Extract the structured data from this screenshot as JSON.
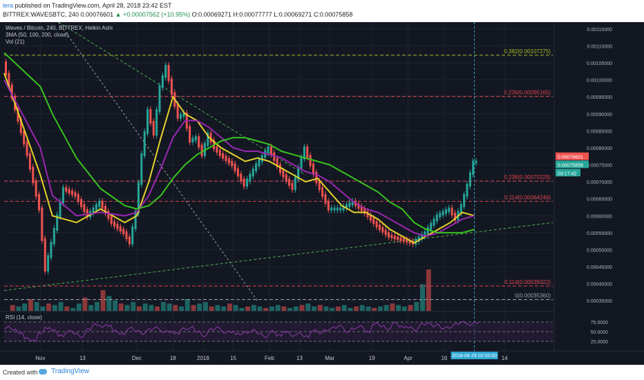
{
  "header": {
    "user": "lera",
    "published": "published on TradingView.com, April 28, 2018 23:42 EST",
    "symbol": "BITTREX:WAVESBTC, 240",
    "last": "0.00076601",
    "change_icon": "triangle-up-icon",
    "change": "+0.00007562 (+10.95%)",
    "ohlc": "O:0.00069271 H:0.00077777 L:0.00069271 C:0.00075858"
  },
  "legend": {
    "line1": "Waves / Bitcoin, 240, BITTREX, Heikin Ashi",
    "line2": "3MA (50, 100, 200, close)",
    "line3": "Vol (21)"
  },
  "rsi_label": "RSI (14, close)",
  "footer": {
    "created": "Created with",
    "brand": "TradingView"
  },
  "colors": {
    "background": "#131722",
    "up": "#26a69a",
    "down": "#ef5350",
    "ma50": "#e6d32b",
    "ma100": "#9b27b0",
    "ma200": "#38c51f",
    "rsi": "#8e3ba8",
    "price_tag": "#ef5350",
    "close_tag": "#26a69a"
  },
  "chart_data": {
    "type": "line",
    "title": "Waves / Bitcoin, 240, BITTREX, Heikin Ashi",
    "ylim": [
      0.00032,
      0.00117
    ],
    "y_ticks": [
      "0.00115000",
      "0.00110000",
      "0.00105000",
      "0.00100000",
      "0.00095000",
      "0.00090000",
      "0.00085000",
      "0.00080000",
      "0.00075000",
      "0.00070000",
      "0.00065000",
      "0.00060000",
      "0.00055000",
      "0.00050000",
      "0.00045000",
      "0.00040000",
      "0.00035000"
    ],
    "x_ticks": [
      "Nov",
      "13",
      "Dec",
      "18",
      "2018",
      "15",
      "Feb",
      "13",
      "Mar",
      "19",
      "Apr",
      "16",
      "2018-04-29 02:00:00",
      "14"
    ],
    "x_tick_index": [
      -4,
      3,
      12,
      18,
      23,
      28,
      34,
      39,
      44,
      51,
      57,
      63,
      68,
      73
    ],
    "x_range": [
      -10,
      81
    ],
    "price": {
      "x": [
        -10,
        -6,
        -4,
        -3,
        -2,
        0,
        2,
        4,
        6,
        8,
        10,
        11,
        12,
        13,
        14,
        15,
        16,
        17,
        18,
        19,
        20,
        21,
        22,
        23,
        24,
        25,
        26,
        28,
        30,
        32,
        34,
        36,
        38,
        40,
        42,
        44,
        46,
        48,
        50,
        52,
        54,
        56,
        58,
        60,
        62,
        64,
        65,
        66,
        67,
        68
      ],
      "y": [
        0.00105,
        0.00078,
        0.00062,
        0.00044,
        0.00052,
        0.00068,
        0.00066,
        0.0006,
        0.00064,
        0.00058,
        0.00055,
        0.00052,
        0.00061,
        0.00078,
        0.00091,
        0.00084,
        0.00098,
        0.00104,
        0.00096,
        0.00089,
        0.0009,
        0.00082,
        0.00083,
        0.00078,
        0.00084,
        0.0008,
        0.00078,
        0.00075,
        0.00069,
        0.00075,
        0.0008,
        0.00073,
        0.00068,
        0.0008,
        0.0007,
        0.00062,
        0.00062,
        0.00064,
        0.00061,
        0.00057,
        0.00054,
        0.00053,
        0.00052,
        0.00055,
        0.0006,
        0.00062,
        0.00059,
        0.00063,
        0.00069,
        0.000758
      ]
    },
    "series": [
      {
        "name": "MA 50",
        "x": [
          -10,
          -4,
          -2,
          2,
          6,
          10,
          12,
          14,
          16,
          18,
          20,
          22,
          24,
          26,
          28,
          30,
          32,
          34,
          36,
          38,
          40,
          42,
          44,
          46,
          48,
          50,
          52,
          54,
          56,
          58,
          60,
          62,
          64,
          66,
          68
        ],
        "y": [
          0.00102,
          0.00072,
          0.0006,
          0.00058,
          0.00062,
          0.00058,
          0.0006,
          0.0007,
          0.00083,
          0.00095,
          0.0009,
          0.00088,
          0.00083,
          0.0008,
          0.00078,
          0.00076,
          0.00077,
          0.00076,
          0.00074,
          0.00072,
          0.0007,
          0.00071,
          0.00067,
          0.00063,
          0.00061,
          0.00061,
          0.00059,
          0.00056,
          0.00054,
          0.00052,
          0.00054,
          0.00056,
          0.00058,
          0.00061,
          0.0006
        ]
      },
      {
        "name": "MA 100",
        "x": [
          -10,
          -4,
          -2,
          2,
          6,
          10,
          12,
          14,
          16,
          18,
          20,
          22,
          24,
          26,
          28,
          30,
          32,
          34,
          36,
          38,
          40,
          42,
          44,
          46,
          48,
          50,
          52,
          54,
          56,
          58,
          60,
          62,
          64,
          66,
          68
        ],
        "y": [
          0.001,
          0.0008,
          0.00066,
          0.0006,
          0.00061,
          0.0006,
          0.00061,
          0.00066,
          0.00074,
          0.00083,
          0.00088,
          0.00088,
          0.00086,
          0.00083,
          0.0008,
          0.00079,
          0.00079,
          0.00078,
          0.00077,
          0.00075,
          0.00073,
          0.00072,
          0.0007,
          0.00067,
          0.00064,
          0.00062,
          0.00061,
          0.00059,
          0.00057,
          0.00055,
          0.00054,
          0.00055,
          0.00057,
          0.00059,
          0.0006
        ]
      },
      {
        "name": "MA 200",
        "x": [
          -10,
          -4,
          -2,
          2,
          6,
          10,
          12,
          14,
          16,
          18,
          20,
          22,
          24,
          26,
          28,
          30,
          32,
          34,
          36,
          38,
          40,
          42,
          44,
          46,
          48,
          50,
          52,
          54,
          56,
          58,
          60,
          62,
          64,
          66,
          68
        ],
        "y": [
          0.00108,
          0.00098,
          0.0009,
          0.00077,
          0.00068,
          0.00063,
          0.00062,
          0.00063,
          0.00066,
          0.00071,
          0.00075,
          0.00078,
          0.0008,
          0.00082,
          0.00083,
          0.00083,
          0.00082,
          0.00081,
          0.00079,
          0.00078,
          0.00077,
          0.00076,
          0.00075,
          0.00073,
          0.00071,
          0.00069,
          0.00067,
          0.00064,
          0.00062,
          0.00058,
          0.00056,
          0.00055,
          0.00055,
          0.00055,
          0.00056
        ]
      }
    ],
    "fibonacci": [
      {
        "label": "0.382(0.00107275)",
        "value": 0.00107275,
        "color": "#aebf2b"
      },
      {
        "label": "0.236(0.00095165)",
        "value": 0.00095165,
        "color": "#e0464d"
      },
      {
        "label": "0.236(0.00070229)",
        "value": 0.00070229,
        "color": "#e0464d"
      },
      {
        "label": "0.114(0.00064249)",
        "value": 0.00064249,
        "color": "#e0464d"
      },
      {
        "label": "0.114(0.00039322)",
        "value": 0.00039322,
        "color": "#e0464d"
      },
      {
        "label": "0(0.00035360)",
        "value": 0.0003536,
        "color": "#9aa0a8"
      }
    ],
    "price_tags": [
      {
        "label": "0.00076601",
        "value": 0.00076601,
        "color": "#ef5350"
      },
      {
        "label": "0.00075858",
        "value": 0.00075858,
        "color": "#26a69a"
      }
    ],
    "countdown": "03:17:42",
    "rsi": {
      "ylim": [
        0,
        100
      ],
      "ticks": [
        "75.0000",
        "50.0000",
        "25.0000"
      ],
      "tick_values": [
        75,
        50,
        25
      ],
      "values": [
        60,
        55,
        48,
        32,
        28,
        45,
        60,
        52,
        40,
        50,
        45,
        38,
        55,
        70,
        62,
        66,
        50,
        45,
        58,
        52,
        46,
        55,
        62,
        48,
        50,
        44,
        58,
        60,
        50,
        40,
        55,
        62,
        46,
        50,
        42,
        48,
        52,
        45,
        38,
        50,
        42,
        48,
        40,
        44,
        38,
        52,
        46,
        55,
        60,
        66,
        48,
        58,
        62,
        50,
        70,
        64,
        58,
        72,
        64,
        60,
        55,
        68,
        72,
        66,
        58,
        62,
        70,
        76,
        66,
        74
      ]
    },
    "volume": {
      "values": [
        4,
        3,
        5,
        8,
        6,
        3,
        5,
        4,
        6,
        3,
        2,
        5,
        9,
        4,
        6,
        14,
        10,
        7,
        5,
        4,
        6,
        3,
        5,
        4,
        3,
        6,
        5,
        4,
        3,
        8,
        4,
        5,
        6,
        3,
        4,
        3,
        5,
        4,
        2,
        3,
        4,
        3,
        2,
        3,
        4,
        3,
        2,
        3,
        4,
        5,
        3,
        4,
        3,
        2,
        3,
        4,
        2,
        3,
        4,
        3,
        2,
        3,
        4,
        5,
        4,
        3,
        4,
        6,
        18,
        28
      ]
    }
  }
}
